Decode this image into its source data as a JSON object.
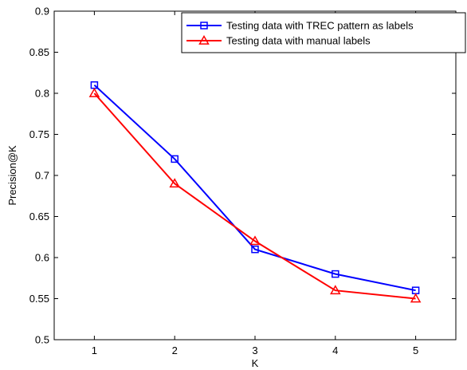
{
  "chart_data": {
    "type": "line",
    "title": "",
    "xlabel": "K",
    "ylabel": "Precision@K",
    "x": [
      1,
      2,
      3,
      4,
      5
    ],
    "xlim": [
      0.5,
      5.5
    ],
    "ylim": [
      0.5,
      0.9
    ],
    "xticks": [
      1,
      2,
      3,
      4,
      5
    ],
    "yticks": [
      0.5,
      0.55,
      0.6,
      0.65,
      0.7,
      0.75,
      0.8,
      0.85,
      0.9
    ],
    "xtick_labels": [
      "1",
      "2",
      "3",
      "4",
      "5"
    ],
    "ytick_labels": [
      "0.5",
      "0.55",
      "0.6",
      "0.65",
      "0.7",
      "0.75",
      "0.8",
      "0.85",
      "0.9"
    ],
    "grid": false,
    "legend_position": "top-right",
    "series": [
      {
        "name": "Testing data with TREC pattern as labels",
        "values": [
          0.81,
          0.72,
          0.61,
          0.58,
          0.56
        ],
        "color": "#0000ff",
        "marker": "square"
      },
      {
        "name": "Testing data with manual labels",
        "values": [
          0.8,
          0.69,
          0.62,
          0.56,
          0.55
        ],
        "color": "#ff0000",
        "marker": "triangle"
      }
    ]
  }
}
